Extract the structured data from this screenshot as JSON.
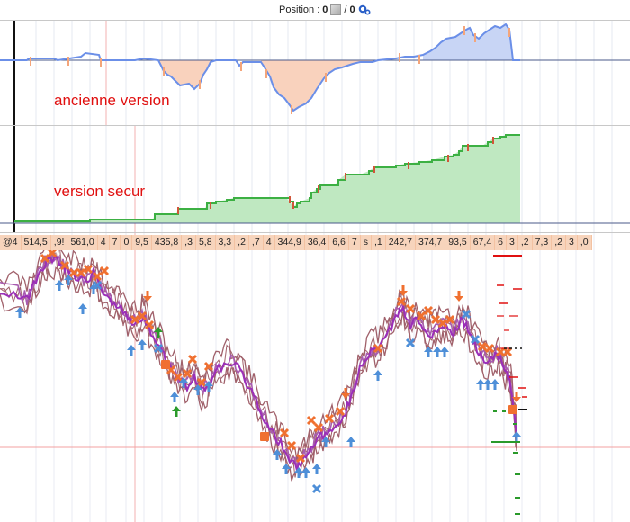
{
  "header": {
    "position_label": "Position : ",
    "position_value": "0",
    "separator": " / ",
    "order_value": "0",
    "icons": [
      "position-box-icon",
      "gear-icon"
    ]
  },
  "panel_top": {
    "label": "ancienne version",
    "colors": {
      "line": "#6b8fe8",
      "loss": "#f4a57a",
      "fill_gain": "#c8d5f5",
      "fill_loss": "#f9d2bd"
    }
  },
  "panel_middle": {
    "label": "version secur",
    "colors": {
      "line": "#3cb043",
      "fill": "#bfe8c1",
      "tick": "#d1563a"
    }
  },
  "ticker": {
    "cells": [
      "@4",
      "514,5",
      ",9!",
      "561,0",
      "4",
      "7",
      "0",
      "9,5",
      "435,8",
      ",3",
      "5,8",
      "3,3",
      ",2",
      ",7",
      "4",
      "344,9",
      "36,4",
      "6,6",
      "7",
      "s",
      ",1",
      "242,7",
      "374,7",
      "93,5",
      "67,4",
      "6",
      "3",
      ",2",
      "7,3",
      ",2",
      "3",
      ",0"
    ]
  },
  "price_chart": {
    "colors": {
      "ma": "#9b2fb8",
      "band": "#a0606a",
      "price": "#a85cb0",
      "sell_marker": "#f07030",
      "buy_marker": "#4e8fd8",
      "exit_marker": "#4e8fd8",
      "hline": "#f3a0a0",
      "stop_red": "#e01010",
      "stop_green": "#2a9a2a"
    }
  }
}
